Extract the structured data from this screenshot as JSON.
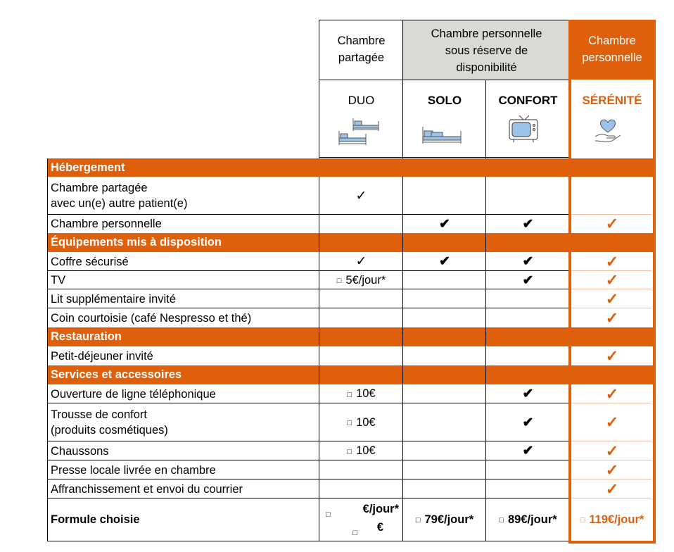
{
  "header": {
    "col_duo_group": "Chambre partagée",
    "col_duo_group_l1": "Chambre",
    "col_duo_group_l2": "partagée",
    "col_mid_group_l1": "Chambre personnelle",
    "col_mid_group_l2": "sous réserve de",
    "col_mid_group_l3": "disponibilité",
    "col_serenite_group_l1": "Chambre",
    "col_serenite_group_l2": "personnelle",
    "formulas": [
      "DUO",
      "SOLO",
      "CONFORT",
      "SÉRÉNITÉ"
    ],
    "icons": [
      "bunk-beds-icon",
      "bed-icon",
      "tv-icon",
      "heart-hand-icon"
    ]
  },
  "colors": {
    "accent": "#e05f0b",
    "header_grey": "#d9d9d5",
    "icon_blue": "#9cc3e8"
  },
  "symbols": {
    "check": "✓",
    "check_heavy": "✔",
    "box": "□"
  },
  "sections": [
    {
      "title": "Hébergement"
    },
    {
      "title": "Équipements mis à disposition"
    },
    {
      "title": "Restauration"
    },
    {
      "title": "Services et accessoires"
    }
  ],
  "rows": {
    "chambre_partagee_l1": "Chambre partagée",
    "chambre_partagee_l2": "avec un(e) autre patient(e)",
    "chambre_personnelle": "Chambre personnelle",
    "coffre": "Coffre sécurisé",
    "tv": "TV",
    "tv_duo": "5€/jour*",
    "lit": "Lit supplémentaire invité",
    "coin": "Coin courtoisie (café Nespresso et thé)",
    "petit_dej": "Petit-déjeuner invité",
    "ligne": "Ouverture de ligne téléphonique",
    "ligne_duo": "10€",
    "trousse_l1": "Trousse de confort",
    "trousse_l2": "(produits cosmétiques)",
    "trousse_duo": "10€",
    "chaussons": "Chaussons",
    "chaussons_duo": "10€",
    "presse": "Presse locale livrée en chambre",
    "courrier": "Affranchissement et envoi du courrier"
  },
  "footer": {
    "label": "Formule choisie",
    "duo_line1": "€/jour*",
    "duo_line2": "€",
    "solo": "79€/jour*",
    "confort": "89€/jour*",
    "serenite": "119€/jour*"
  }
}
